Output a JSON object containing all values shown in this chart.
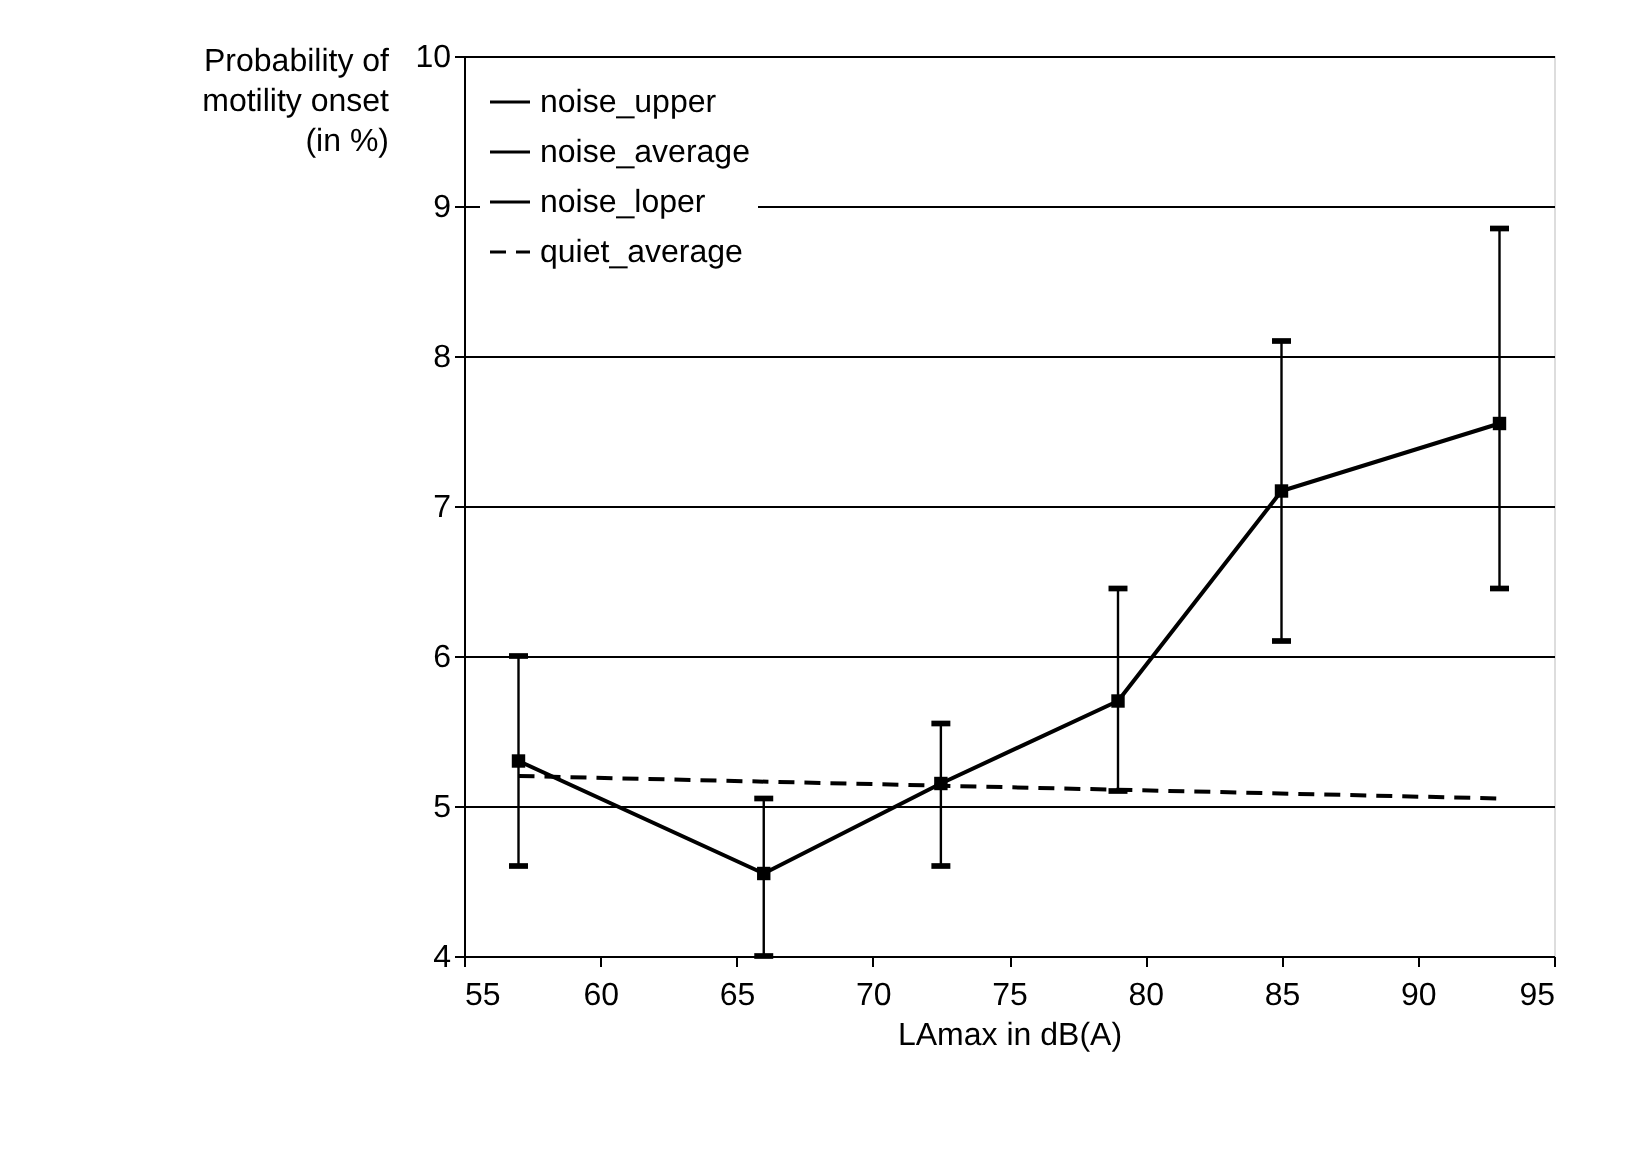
{
  "chart_data": {
    "type": "line",
    "xlabel": "LAmax in dB(A)",
    "ylabel": "Probability of\nmotility onset\n(in %)",
    "xlim": [
      55,
      95
    ],
    "xticks": [
      55,
      60,
      65,
      70,
      75,
      80,
      85,
      90,
      95
    ],
    "ylim": [
      4,
      10
    ],
    "yticks": [
      4,
      5,
      6,
      7,
      8,
      9,
      10
    ],
    "grid": "y",
    "legend": "top left",
    "x": [
      57,
      66,
      72.5,
      79,
      85,
      93
    ],
    "series": [
      {
        "name": "noise_upper",
        "type": "scatter",
        "color": "#000000",
        "values": [
          6.0,
          5.05,
          5.55,
          6.45,
          8.1,
          8.85
        ]
      },
      {
        "name": "noise_average",
        "marker": "square",
        "line_style": "solid",
        "color": "#000000",
        "values": [
          5.3,
          4.55,
          5.15,
          5.7,
          7.1,
          7.55
        ],
        "errors": [
          [
            4.6,
            6.0
          ],
          [
            4.0,
            5.05
          ],
          [
            4.6,
            5.55
          ],
          [
            5.1,
            6.45
          ],
          [
            6.1,
            8.1
          ],
          [
            6.45,
            8.85
          ]
        ]
      },
      {
        "name": "noise_loper",
        "type": "scatter",
        "color": "#000000",
        "values": [
          4.6,
          4.0,
          4.6,
          5.1,
          6.1,
          6.45
        ]
      },
      {
        "name": "quiet_average",
        "type": "line",
        "marker": "none",
        "line_style": "dashed",
        "color": "#000000",
        "x": [
          57,
          93
        ],
        "values": [
          5.2,
          5.05
        ]
      }
    ]
  }
}
